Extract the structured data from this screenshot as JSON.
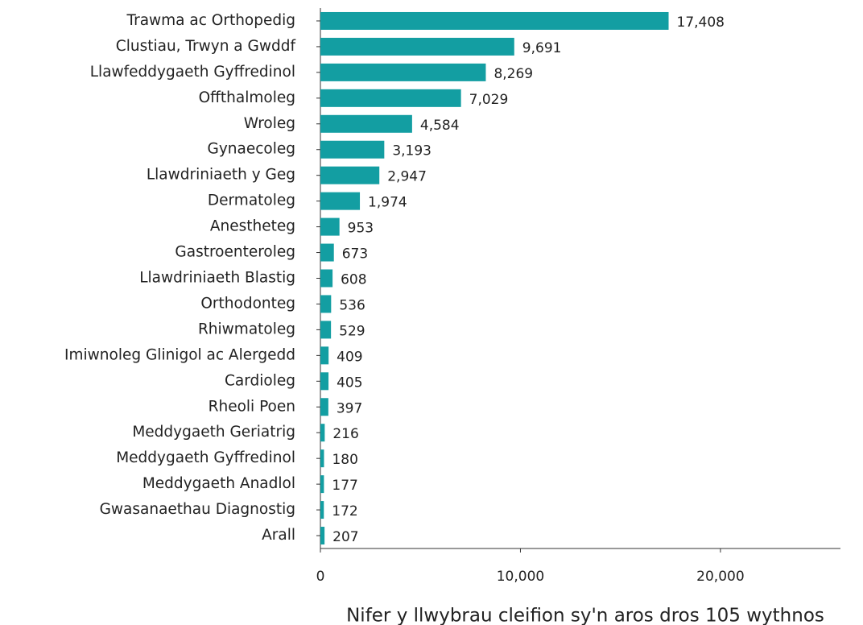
{
  "chart_data": {
    "type": "barh",
    "x_label": "Nifer y llwybrau cleifion sy'n aros dros 105 wythnos",
    "categories": [
      "Trawma ac Orthopedig",
      "Clustiau, Trwyn a Gwddf",
      "Llawfeddygaeth Gyffredinol",
      "Offthalmoleg",
      "Wroleg",
      "Gynaecoleg",
      "Llawdriniaeth y Geg",
      "Dermatoleg",
      "Anestheteg",
      "Gastroenteroleg",
      "Llawdriniaeth Blastig",
      "Orthodonteg",
      "Rhiwmatoleg",
      "Imiwnoleg Glinigol ac Alergedd",
      "Cardioleg",
      "Rheoli Poen",
      "Meddygaeth Geriatrig",
      "Meddygaeth Gyffredinol",
      "Meddygaeth Anadlol",
      "Gwasanaethau Diagnostig",
      "Arall"
    ],
    "values": [
      17408,
      9691,
      8269,
      7029,
      4584,
      3193,
      2947,
      1974,
      953,
      673,
      608,
      536,
      529,
      409,
      405,
      397,
      216,
      180,
      177,
      172,
      207
    ],
    "value_labels": [
      "17,408",
      "9,691",
      "8,269",
      "7,029",
      "4,584",
      "3,193",
      "2,947",
      "1,974",
      "953",
      "673",
      "608",
      "536",
      "529",
      "409",
      "405",
      "397",
      "216",
      "180",
      "177",
      "172",
      "207"
    ],
    "color": "#139ea2",
    "xlim": [
      0,
      26000
    ],
    "xticks": [
      0,
      {
        "value": 10000,
        "label": "10,000"
      },
      {
        "value": 20000,
        "label": "20,000"
      }
    ]
  }
}
